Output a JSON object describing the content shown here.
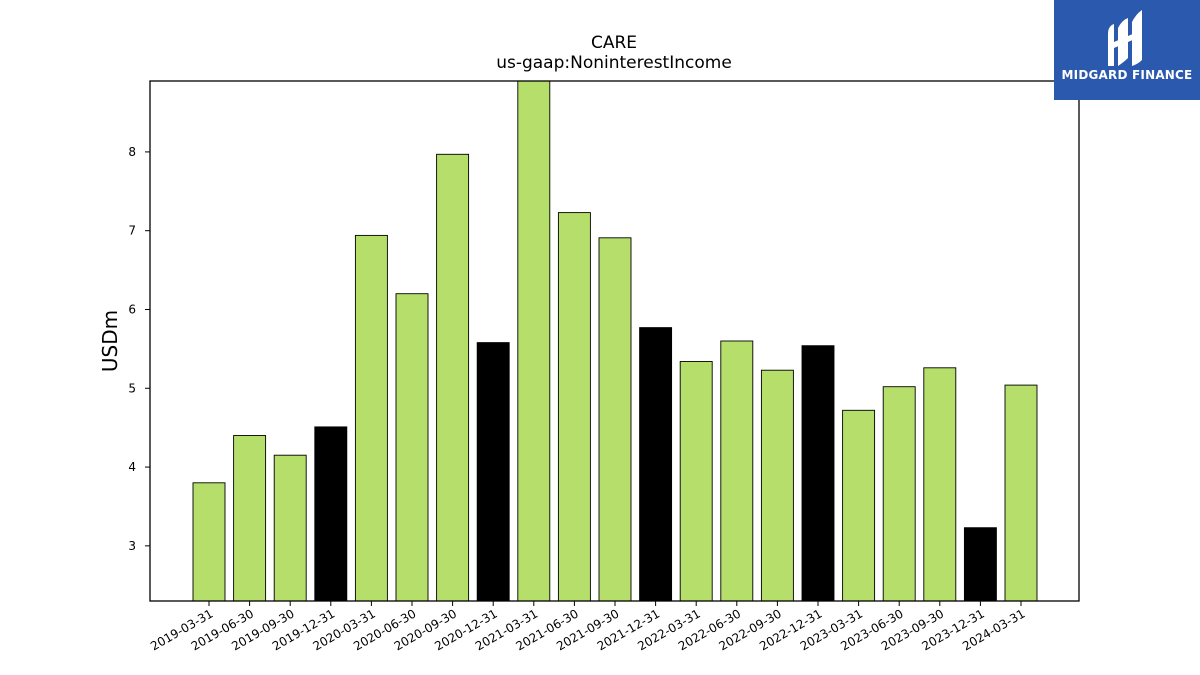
{
  "chart_data": {
    "type": "bar",
    "title": "CARE",
    "subtitle": "us-gaap:NoninterestIncome",
    "xlabel": "",
    "ylabel": "USDm",
    "ylim": [
      2.3,
      8.9
    ],
    "yticks": [
      3,
      4,
      5,
      6,
      7,
      8
    ],
    "grid": false,
    "categories": [
      "2019-03-31",
      "2019-06-30",
      "2019-09-30",
      "2019-12-31",
      "2020-03-31",
      "2020-06-30",
      "2020-09-30",
      "2020-12-31",
      "2021-03-31",
      "2021-06-30",
      "2021-09-30",
      "2021-12-31",
      "2022-03-31",
      "2022-06-30",
      "2022-09-30",
      "2022-12-31",
      "2023-03-31",
      "2023-06-30",
      "2023-09-30",
      "2023-12-31",
      "2024-03-31"
    ],
    "values": [
      3.8,
      4.4,
      4.15,
      4.51,
      6.94,
      6.2,
      7.97,
      5.58,
      8.9,
      7.23,
      6.91,
      5.77,
      5.34,
      5.6,
      5.23,
      5.54,
      4.72,
      5.02,
      5.26,
      3.23,
      5.04
    ],
    "bar_colors": [
      "#b5df6a",
      "#b5df6a",
      "#b5df6a",
      "#000000",
      "#b5df6a",
      "#b5df6a",
      "#b5df6a",
      "#000000",
      "#b5df6a",
      "#b5df6a",
      "#b5df6a",
      "#000000",
      "#b5df6a",
      "#b5df6a",
      "#b5df6a",
      "#000000",
      "#b5df6a",
      "#b5df6a",
      "#b5df6a",
      "#000000",
      "#b5df6a"
    ],
    "bar_edge_color": "#000000"
  },
  "logo": {
    "text": "MIDGARD FINANCE",
    "icon": "midgard-m-logo-icon",
    "background": "#2a59ad",
    "color": "#ffffff"
  }
}
